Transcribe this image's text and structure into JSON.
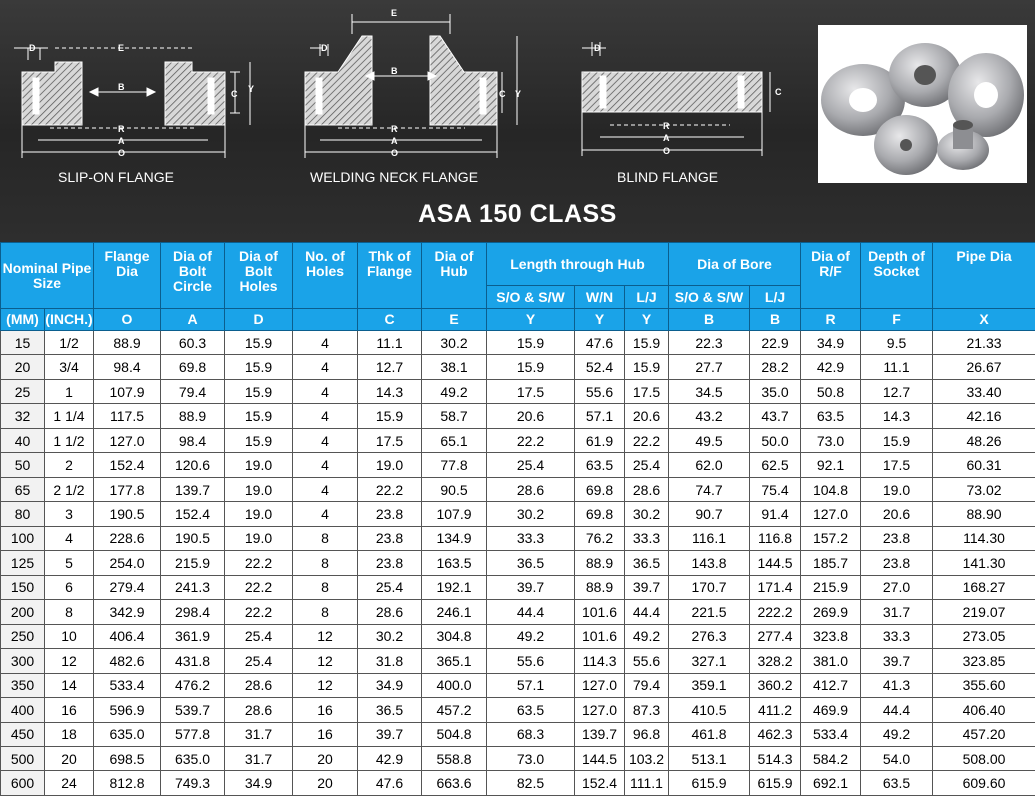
{
  "title": "ASA 150 CLASS",
  "diagrams": {
    "slip_on": {
      "caption": "SLIP-ON FLANGE",
      "labels": {
        "d": "D",
        "e": "E",
        "b": "B",
        "c": "C",
        "y": "Y",
        "r": "R",
        "a": "A",
        "o": "O"
      }
    },
    "welding_neck": {
      "caption": "WELDING NECK FLANGE",
      "labels": {
        "e": "E",
        "d": "D",
        "b": "B",
        "c": "C",
        "y": "Y",
        "r": "R",
        "a": "A",
        "o": "O"
      }
    },
    "blind": {
      "caption": "BLIND FLANGE",
      "labels": {
        "d": "D",
        "c": "C",
        "r": "R",
        "a": "A",
        "o": "O"
      }
    }
  },
  "colors": {
    "header_blue": "#1aa3e8",
    "background": "#2b2b2b"
  },
  "table": {
    "header": {
      "nominal": "Nominal Pipe Size",
      "mm": "(MM)",
      "inch": "(INCH.)",
      "flange_dia": "Flange Dia",
      "bolt_circle": "Dia of Bolt Circle",
      "bolt_holes": "Dia of Bolt Holes",
      "holes": "No. of Holes",
      "thk": "Thk of Flange",
      "hub": "Dia of Hub",
      "length_hub": "Length through Hub",
      "bore": "Dia of Bore",
      "rf": "Dia of R/F",
      "socket": "Depth of Socket",
      "pipe": "Pipe Dia",
      "sub": {
        "so_sw_y": "S/O & S/W",
        "wn_y": "W/N",
        "lj_y": "L/J",
        "so_sw_b": "S/O & S/W",
        "lj_b": "L/J"
      },
      "letters": {
        "o": "O",
        "a": "A",
        "d": "D",
        "c": "C",
        "e": "E",
        "y1": "Y",
        "y2": "Y",
        "y3": "Y",
        "b1": "B",
        "b2": "B",
        "r": "R",
        "f": "F",
        "x": "X"
      }
    },
    "rows": [
      [
        "15",
        "1/2",
        "88.9",
        "60.3",
        "15.9",
        "4",
        "11.1",
        "30.2",
        "15.9",
        "47.6",
        "15.9",
        "22.3",
        "22.9",
        "34.9",
        "9.5",
        "21.33"
      ],
      [
        "20",
        "3/4",
        "98.4",
        "69.8",
        "15.9",
        "4",
        "12.7",
        "38.1",
        "15.9",
        "52.4",
        "15.9",
        "27.7",
        "28.2",
        "42.9",
        "11.1",
        "26.67"
      ],
      [
        "25",
        "1",
        "107.9",
        "79.4",
        "15.9",
        "4",
        "14.3",
        "49.2",
        "17.5",
        "55.6",
        "17.5",
        "34.5",
        "35.0",
        "50.8",
        "12.7",
        "33.40"
      ],
      [
        "32",
        "1 1/4",
        "117.5",
        "88.9",
        "15.9",
        "4",
        "15.9",
        "58.7",
        "20.6",
        "57.1",
        "20.6",
        "43.2",
        "43.7",
        "63.5",
        "14.3",
        "42.16"
      ],
      [
        "40",
        "1 1/2",
        "127.0",
        "98.4",
        "15.9",
        "4",
        "17.5",
        "65.1",
        "22.2",
        "61.9",
        "22.2",
        "49.5",
        "50.0",
        "73.0",
        "15.9",
        "48.26"
      ],
      [
        "50",
        "2",
        "152.4",
        "120.6",
        "19.0",
        "4",
        "19.0",
        "77.8",
        "25.4",
        "63.5",
        "25.4",
        "62.0",
        "62.5",
        "92.1",
        "17.5",
        "60.31"
      ],
      [
        "65",
        "2 1/2",
        "177.8",
        "139.7",
        "19.0",
        "4",
        "22.2",
        "90.5",
        "28.6",
        "69.8",
        "28.6",
        "74.7",
        "75.4",
        "104.8",
        "19.0",
        "73.02"
      ],
      [
        "80",
        "3",
        "190.5",
        "152.4",
        "19.0",
        "4",
        "23.8",
        "107.9",
        "30.2",
        "69.8",
        "30.2",
        "90.7",
        "91.4",
        "127.0",
        "20.6",
        "88.90"
      ],
      [
        "100",
        "4",
        "228.6",
        "190.5",
        "19.0",
        "8",
        "23.8",
        "134.9",
        "33.3",
        "76.2",
        "33.3",
        "116.1",
        "116.8",
        "157.2",
        "23.8",
        "114.30"
      ],
      [
        "125",
        "5",
        "254.0",
        "215.9",
        "22.2",
        "8",
        "23.8",
        "163.5",
        "36.5",
        "88.9",
        "36.5",
        "143.8",
        "144.5",
        "185.7",
        "23.8",
        "141.30"
      ],
      [
        "150",
        "6",
        "279.4",
        "241.3",
        "22.2",
        "8",
        "25.4",
        "192.1",
        "39.7",
        "88.9",
        "39.7",
        "170.7",
        "171.4",
        "215.9",
        "27.0",
        "168.27"
      ],
      [
        "200",
        "8",
        "342.9",
        "298.4",
        "22.2",
        "8",
        "28.6",
        "246.1",
        "44.4",
        "101.6",
        "44.4",
        "221.5",
        "222.2",
        "269.9",
        "31.7",
        "219.07"
      ],
      [
        "250",
        "10",
        "406.4",
        "361.9",
        "25.4",
        "12",
        "30.2",
        "304.8",
        "49.2",
        "101.6",
        "49.2",
        "276.3",
        "277.4",
        "323.8",
        "33.3",
        "273.05"
      ],
      [
        "300",
        "12",
        "482.6",
        "431.8",
        "25.4",
        "12",
        "31.8",
        "365.1",
        "55.6",
        "114.3",
        "55.6",
        "327.1",
        "328.2",
        "381.0",
        "39.7",
        "323.85"
      ],
      [
        "350",
        "14",
        "533.4",
        "476.2",
        "28.6",
        "12",
        "34.9",
        "400.0",
        "57.1",
        "127.0",
        "79.4",
        "359.1",
        "360.2",
        "412.7",
        "41.3",
        "355.60"
      ],
      [
        "400",
        "16",
        "596.9",
        "539.7",
        "28.6",
        "16",
        "36.5",
        "457.2",
        "63.5",
        "127.0",
        "87.3",
        "410.5",
        "411.2",
        "469.9",
        "44.4",
        "406.40"
      ],
      [
        "450",
        "18",
        "635.0",
        "577.8",
        "31.7",
        "16",
        "39.7",
        "504.8",
        "68.3",
        "139.7",
        "96.8",
        "461.8",
        "462.3",
        "533.4",
        "49.2",
        "457.20"
      ],
      [
        "500",
        "20",
        "698.5",
        "635.0",
        "31.7",
        "20",
        "42.9",
        "558.8",
        "73.0",
        "144.5",
        "103.2",
        "513.1",
        "514.3",
        "584.2",
        "54.0",
        "508.00"
      ],
      [
        "600",
        "24",
        "812.8",
        "749.3",
        "34.9",
        "20",
        "47.6",
        "663.6",
        "82.5",
        "152.4",
        "111.1",
        "615.9",
        "615.9",
        "692.1",
        "63.5",
        "609.60"
      ]
    ]
  }
}
